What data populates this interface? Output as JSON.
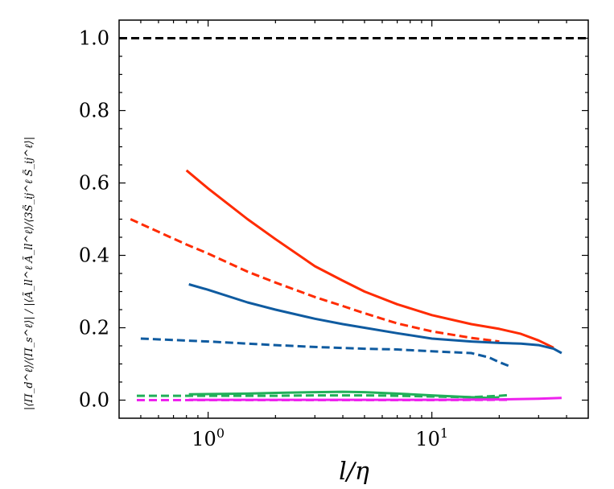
{
  "chart_data": {
    "type": "line",
    "title": "",
    "xlabel": "l/η",
    "ylabel": "|⟨Π_d^ℓ⟩/⟨Π_s^ℓ⟩| / |⟨Ã_ll^ℓ Ã_ll^ℓ⟩/⟨3S̃_ij^ℓ S̃_ij^ℓ⟩|",
    "xscale": "log",
    "xlim": [
      0.4,
      50
    ],
    "ylim": [
      -0.05,
      1.05
    ],
    "x_ticks": [
      {
        "value": 1,
        "base": "10",
        "exp": "0"
      },
      {
        "value": 10,
        "base": "10",
        "exp": "1"
      }
    ],
    "y_ticks": [
      {
        "value": 0.0,
        "label": "0.0"
      },
      {
        "value": 0.2,
        "label": "0.2"
      },
      {
        "value": 0.4,
        "label": "0.4"
      },
      {
        "value": 0.6,
        "label": "0.6"
      },
      {
        "value": 0.8,
        "label": "0.8"
      },
      {
        "value": 1.0,
        "label": "1.0"
      }
    ],
    "grid": false,
    "reference_line": {
      "y": 1.0,
      "color": "#000000",
      "style": "dashed"
    },
    "series": [
      {
        "color": "#ff2b00",
        "style": "solid",
        "x": [
          0.8,
          1,
          1.5,
          2,
          3,
          4,
          5,
          7,
          10,
          15,
          20,
          25,
          30,
          35
        ],
        "y": [
          0.635,
          0.585,
          0.5,
          0.445,
          0.37,
          0.33,
          0.3,
          0.265,
          0.235,
          0.21,
          0.197,
          0.183,
          0.165,
          0.145
        ]
      },
      {
        "color": "#ff2b00",
        "style": "dashed",
        "x": [
          0.45,
          0.6,
          0.8,
          1,
          1.5,
          2,
          3,
          4,
          5,
          7,
          10,
          15,
          20
        ],
        "y": [
          0.5,
          0.465,
          0.43,
          0.405,
          0.355,
          0.325,
          0.285,
          0.26,
          0.24,
          0.212,
          0.19,
          0.172,
          0.162
        ]
      },
      {
        "color": "#0f5ba0",
        "style": "solid",
        "x": [
          0.82,
          1,
          1.5,
          2,
          3,
          4,
          5,
          7,
          10,
          15,
          20,
          25,
          30,
          35,
          38
        ],
        "y": [
          0.32,
          0.305,
          0.27,
          0.25,
          0.225,
          0.21,
          0.2,
          0.185,
          0.17,
          0.162,
          0.158,
          0.156,
          0.152,
          0.142,
          0.13
        ]
      },
      {
        "color": "#0f5ba0",
        "style": "dashed",
        "x": [
          0.5,
          1,
          2,
          3,
          5,
          7,
          10,
          15,
          18,
          20,
          22
        ],
        "y": [
          0.17,
          0.162,
          0.152,
          0.147,
          0.142,
          0.14,
          0.135,
          0.13,
          0.118,
          0.105,
          0.095
        ]
      },
      {
        "color": "#22b05a",
        "style": "solid",
        "x": [
          0.82,
          1.5,
          2,
          3,
          4,
          5,
          7,
          10,
          15,
          18,
          20
        ],
        "y": [
          0.016,
          0.018,
          0.02,
          0.022,
          0.023,
          0.022,
          0.018,
          0.013,
          0.008,
          0.006,
          0.008
        ]
      },
      {
        "color": "#22b05a",
        "style": "dashed",
        "x": [
          0.48,
          1,
          2,
          3,
          5,
          7,
          10,
          15,
          20,
          22
        ],
        "y": [
          0.012,
          0.012,
          0.012,
          0.013,
          0.013,
          0.012,
          0.01,
          0.008,
          0.012,
          0.014
        ]
      },
      {
        "color": "#ee22ee",
        "style": "solid",
        "x": [
          0.82,
          2,
          5,
          10,
          20,
          30,
          38
        ],
        "y": [
          0.001,
          0.001,
          0.001,
          0.001,
          0.002,
          0.004,
          0.006
        ]
      },
      {
        "color": "#ee22ee",
        "style": "dashed",
        "x": [
          0.48,
          2,
          5,
          10,
          22
        ],
        "y": [
          0.0,
          0.0,
          0.0,
          0.0,
          0.001
        ]
      }
    ]
  }
}
